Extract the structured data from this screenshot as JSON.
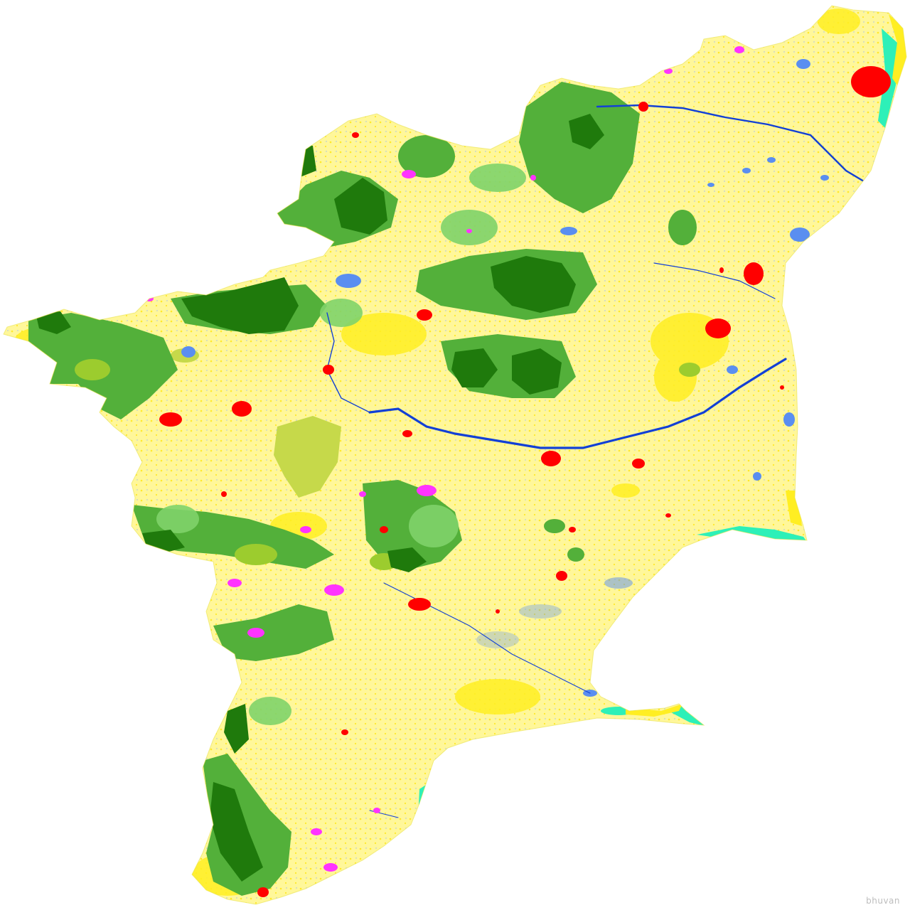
{
  "map": {
    "type": "land-use-land-cover",
    "watermark": "bhuvan",
    "legend_colors": {
      "agriculture_crop": "#fff79a",
      "agriculture_fallow": "#ffee22",
      "dense_forest": "#1f7a0c",
      "open_forest": "#53b03a",
      "scrub_forest": "#7fd36a",
      "plantation": "#9ccc2e",
      "wasteland": "#c6d94a",
      "built_up": "#ff0000",
      "wetland": "#2df0b8",
      "water_bodies": "#5a8ef0",
      "river": "#1240d6",
      "barren_rocky": "#ff33ff"
    }
  }
}
